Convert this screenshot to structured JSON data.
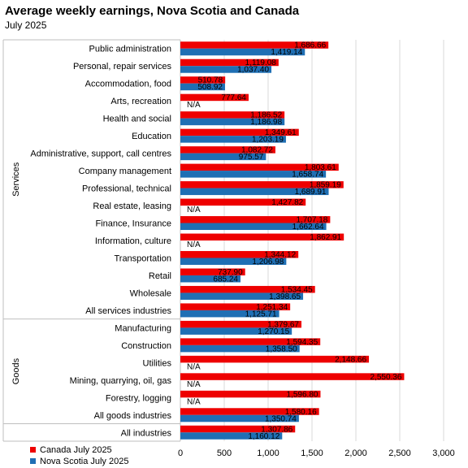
{
  "chart_data": {
    "type": "bar",
    "orientation": "horizontal",
    "title": "Average weekly earnings, Nova Scotia and Canada",
    "subtitle": "July 2025",
    "xlim": [
      0,
      3000
    ],
    "x_ticks": [
      "0",
      "500",
      "1,000",
      "1,500",
      "2,000",
      "2,500",
      "3,000"
    ],
    "grid": true,
    "legend_position": "bottom-left",
    "categories": [
      "Public administration",
      "Personal, repair services",
      "Accommodation, food",
      "Arts, recreation",
      "Health and social",
      "Education",
      "Administrative, support, call centres",
      "Company management",
      "Professional, technical",
      "Real estate, leasing",
      "Finance, Insurance",
      "Information, culture",
      "Transportation",
      "Retail",
      "Wholesale",
      "All services industries",
      "Manufacturing",
      "Construction",
      "Utilities",
      "Mining, quarrying, oil, gas",
      "Forestry, logging",
      "All goods industries",
      "All industries"
    ],
    "groups": [
      {
        "name": "Services",
        "start": 0,
        "end": 15
      },
      {
        "name": "Goods",
        "start": 16,
        "end": 21
      }
    ],
    "series": [
      {
        "name": "Canada July 2025",
        "color": "#ee0000",
        "values": [
          1686.66,
          1119.08,
          510.78,
          777.64,
          1186.52,
          1349.61,
          1082.72,
          1803.61,
          1859.19,
          1427.82,
          1707.18,
          1862.91,
          1344.12,
          737.9,
          1534.45,
          1251.34,
          1379.67,
          1594.35,
          2148.66,
          2550.36,
          1596.8,
          1580.16,
          1307.86
        ],
        "labels": [
          "1,686.66",
          "1,119.08",
          "510.78",
          "777.64",
          "1,186.52",
          "1,349.61",
          "1,082.72",
          "1,803.61",
          "1,859.19",
          "1,427.82",
          "1,707.18",
          "1,862.91",
          "1,344.12",
          "737.90",
          "1,534.45",
          "1,251.34",
          "1,379.67",
          "1,594.35",
          "2,148.66",
          "2,550.36",
          "1,596.80",
          "1,580.16",
          "1,307.86"
        ]
      },
      {
        "name": "Nova Scotia July 2025",
        "color": "#1f6fb4",
        "values": [
          1419.14,
          1037.4,
          508.92,
          null,
          1186.98,
          1203.19,
          975.57,
          1658.74,
          1689.91,
          null,
          1662.64,
          null,
          1206.98,
          685.24,
          1398.65,
          1125.71,
          1270.15,
          1358.5,
          null,
          null,
          null,
          1350.74,
          1160.12
        ],
        "labels": [
          "1,419.14",
          "1,037.40",
          "508.92",
          "N/A",
          "1,186.98",
          "1,203.19",
          "975.57",
          "1,658.74",
          "1,689.91",
          "N/A",
          "1,662.64",
          "N/A",
          "1,206.98",
          "685.24",
          "1,398.65",
          "1,125.71",
          "1,270.15",
          "1,358.50",
          "N/A",
          "N/A",
          "N/A",
          "1,350.74",
          "1,160.12"
        ]
      }
    ]
  }
}
